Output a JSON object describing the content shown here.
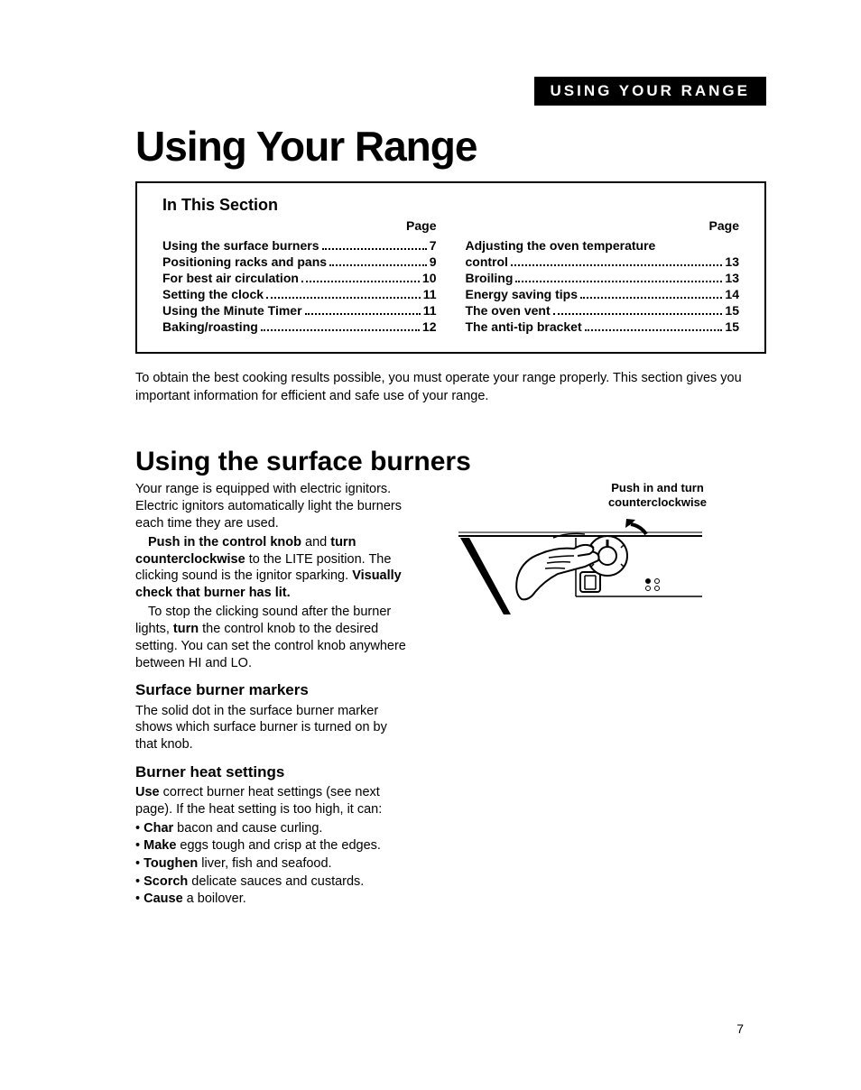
{
  "header_banner": "USING YOUR RANGE",
  "main_title": "Using Your Range",
  "toc": {
    "title": "In This Section",
    "page_label": "Page",
    "left": [
      {
        "label": "Using the surface burners",
        "page": "7"
      },
      {
        "label": "Positioning racks and pans",
        "page": "9"
      },
      {
        "label": "For best air circulation",
        "page": "10"
      },
      {
        "label": "Setting the clock",
        "page": "11"
      },
      {
        "label": "Using the Minute Timer",
        "page": "11"
      },
      {
        "label": "Baking/roasting",
        "page": "12"
      }
    ],
    "right": [
      {
        "label": "Adjusting the oven temperature",
        "label2": "control",
        "page": "13"
      },
      {
        "label": "Broiling",
        "page": "13"
      },
      {
        "label": "Energy saving tips",
        "page": "14"
      },
      {
        "label": "The oven vent",
        "page": "15"
      },
      {
        "label": "The anti-tip bracket",
        "page": "15"
      }
    ]
  },
  "intro": "To obtain the best cooking results possible, you must operate your range properly. This section gives you important information for efficient and safe use of your range.",
  "section_title": "Using the surface burners",
  "body": {
    "p1": "Your range is equipped with electric ignitors. Electric ignitors automatically light the burners each time they are used.",
    "p2_a": "Push in the control knob",
    "p2_b": " and ",
    "p2_c": "turn counterclockwise",
    "p2_d": " to the LITE position. The clicking sound is the ignitor sparking. ",
    "p2_e": "Visually check that burner has lit.",
    "p3_a": "To stop the clicking sound after the burner lights, ",
    "p3_b": "turn",
    "p3_c": " the control knob to the desired setting. You can set the control knob anywhere between HI and LO."
  },
  "sub1": {
    "title": "Surface burner markers",
    "text": "The solid dot in the surface burner marker shows which surface burner is turned on by that knob."
  },
  "sub2": {
    "title": "Burner heat settings",
    "lead_a": "Use",
    "lead_b": " correct burner heat settings (see next page). If the heat setting is too high, it can:",
    "bullets": [
      {
        "b": "Char",
        "t": " bacon and cause curling."
      },
      {
        "b": "Make",
        "t": " eggs tough and crisp at the edges."
      },
      {
        "b": "Toughen",
        "t": " liver, fish and seafood."
      },
      {
        "b": "Scorch",
        "t": " delicate sauces and custards."
      },
      {
        "b": "Cause",
        "t": " a boilover."
      }
    ]
  },
  "diagram_caption_l1": "Push in and turn",
  "diagram_caption_l2": "counterclockwise",
  "page_number": "7",
  "colors": {
    "black": "#000000",
    "white": "#ffffff"
  }
}
